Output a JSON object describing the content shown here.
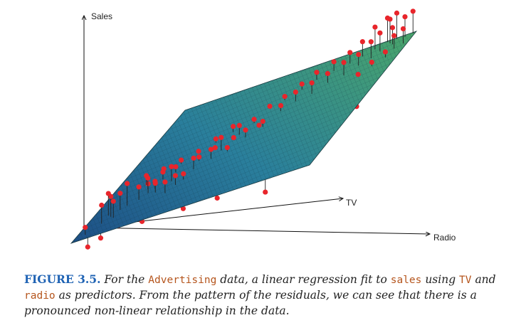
{
  "chart_data": {
    "type": "scatter",
    "subtype": "3d-regression-plane",
    "axes": {
      "vertical": "Sales",
      "depth": "TV",
      "horizontal": "Radio"
    },
    "colors": {
      "plane_low": "#1f5f8c",
      "plane_high": "#3f9a62",
      "points": "#e8252b",
      "residual_lines": "#222222"
    },
    "points": [
      {
        "u": 0.04,
        "v": 0.04,
        "h": 0.04
      },
      {
        "u": 0.06,
        "v": 0.02,
        "h": -0.06
      },
      {
        "u": 0.08,
        "v": 0.1,
        "h": 0.1
      },
      {
        "u": 0.1,
        "v": 0.14,
        "h": 0.11
      },
      {
        "u": 0.12,
        "v": 0.18,
        "h": 0.09
      },
      {
        "u": 0.14,
        "v": 0.2,
        "h": 0.12
      },
      {
        "u": 0.18,
        "v": 0.22,
        "h": 0.07
      },
      {
        "u": 0.2,
        "v": 0.26,
        "h": 0.05
      },
      {
        "u": 0.22,
        "v": 0.28,
        "h": 0.04
      },
      {
        "u": 0.1,
        "v": 0.05,
        "h": -0.05
      },
      {
        "u": 0.16,
        "v": 0.08,
        "h": -0.03
      },
      {
        "u": 0.25,
        "v": 0.1,
        "h": -0.06
      },
      {
        "u": 0.3,
        "v": 0.2,
        "h": 0.06
      },
      {
        "u": 0.32,
        "v": 0.25,
        "h": 0.05
      },
      {
        "u": 0.28,
        "v": 0.3,
        "h": 0.08
      },
      {
        "u": 0.35,
        "v": 0.35,
        "h": 0.06
      },
      {
        "u": 0.4,
        "v": 0.4,
        "h": 0.05
      },
      {
        "u": 0.42,
        "v": 0.45,
        "h": 0.07
      },
      {
        "u": 0.45,
        "v": 0.3,
        "h": -0.02
      },
      {
        "u": 0.5,
        "v": 0.32,
        "h": -0.05
      },
      {
        "u": 0.55,
        "v": 0.3,
        "h": -0.08
      },
      {
        "u": 0.6,
        "v": 0.28,
        "h": -0.1
      },
      {
        "u": 0.7,
        "v": 0.25,
        "h": -0.2
      },
      {
        "u": 0.62,
        "v": 0.4,
        "h": -0.04
      },
      {
        "u": 0.66,
        "v": 0.45,
        "h": -0.06
      },
      {
        "u": 0.75,
        "v": 0.42,
        "h": -0.12
      },
      {
        "u": 0.8,
        "v": 0.45,
        "h": -0.15
      },
      {
        "u": 0.85,
        "v": 0.5,
        "h": -0.1
      },
      {
        "u": 0.9,
        "v": 0.52,
        "h": -0.08
      },
      {
        "u": 0.95,
        "v": 0.55,
        "h": -0.06
      },
      {
        "u": 0.5,
        "v": 0.5,
        "h": 0.04
      },
      {
        "u": 0.55,
        "v": 0.55,
        "h": 0.03
      },
      {
        "u": 0.45,
        "v": 0.55,
        "h": 0.05
      },
      {
        "u": 0.4,
        "v": 0.6,
        "h": 0.03
      },
      {
        "u": 0.48,
        "v": 0.62,
        "h": 0.02
      },
      {
        "u": 0.58,
        "v": 0.65,
        "h": 0.03
      },
      {
        "u": 0.62,
        "v": 0.7,
        "h": 0.05
      },
      {
        "u": 0.68,
        "v": 0.72,
        "h": 0.06
      },
      {
        "u": 0.72,
        "v": 0.78,
        "h": 0.05
      },
      {
        "u": 0.78,
        "v": 0.8,
        "h": 0.07
      },
      {
        "u": 0.82,
        "v": 0.85,
        "h": 0.06
      },
      {
        "u": 0.86,
        "v": 0.88,
        "h": 0.09
      },
      {
        "u": 0.88,
        "v": 0.92,
        "h": 0.1
      },
      {
        "u": 0.92,
        "v": 0.95,
        "h": 0.09
      },
      {
        "u": 0.95,
        "v": 0.9,
        "h": 0.07
      },
      {
        "u": 0.96,
        "v": 0.98,
        "h": 0.11
      },
      {
        "u": 0.9,
        "v": 0.97,
        "h": 0.13
      },
      {
        "u": 0.84,
        "v": 0.96,
        "h": 0.12
      },
      {
        "u": 0.8,
        "v": 0.93,
        "h": 0.08
      },
      {
        "u": 0.76,
        "v": 0.9,
        "h": 0.06
      },
      {
        "u": 0.7,
        "v": 0.88,
        "h": 0.05
      },
      {
        "u": 0.64,
        "v": 0.85,
        "h": 0.04
      },
      {
        "u": 0.6,
        "v": 0.8,
        "h": 0.03
      },
      {
        "u": 0.55,
        "v": 0.75,
        "h": 0.02
      },
      {
        "u": 0.5,
        "v": 0.72,
        "h": 0.01
      },
      {
        "u": 0.35,
        "v": 0.55,
        "h": 0.02
      },
      {
        "u": 0.3,
        "v": 0.5,
        "h": 0.01
      },
      {
        "u": 0.25,
        "v": 0.45,
        "h": 0.02
      },
      {
        "u": 0.2,
        "v": 0.4,
        "h": 0.03
      },
      {
        "u": 0.15,
        "v": 0.35,
        "h": 0.05
      },
      {
        "u": 0.18,
        "v": 0.3,
        "h": 0.06
      },
      {
        "u": 0.22,
        "v": 0.35,
        "h": 0.04
      },
      {
        "u": 0.26,
        "v": 0.38,
        "h": 0.03
      },
      {
        "u": 0.34,
        "v": 0.42,
        "h": 0.02
      },
      {
        "u": 0.38,
        "v": 0.48,
        "h": 0.01
      },
      {
        "u": 0.44,
        "v": 0.52,
        "h": 0.01
      },
      {
        "u": 0.52,
        "v": 0.58,
        "h": 0.0
      },
      {
        "u": 0.56,
        "v": 0.6,
        "h": -0.01
      },
      {
        "u": 0.74,
        "v": 0.62,
        "h": -0.03
      },
      {
        "u": 0.78,
        "v": 0.68,
        "h": -0.02
      },
      {
        "u": 0.82,
        "v": 0.72,
        "h": -0.01
      },
      {
        "u": 0.86,
        "v": 0.76,
        "h": 0.0
      },
      {
        "u": 0.9,
        "v": 0.8,
        "h": 0.02
      },
      {
        "u": 0.94,
        "v": 0.84,
        "h": 0.03
      },
      {
        "u": 0.98,
        "v": 0.92,
        "h": 0.08
      },
      {
        "u": 0.99,
        "v": 0.99,
        "h": 0.12
      },
      {
        "u": 0.92,
        "v": 0.99,
        "h": 0.14
      },
      {
        "u": 0.88,
        "v": 0.99,
        "h": 0.13
      },
      {
        "u": 0.12,
        "v": 0.12,
        "h": 0.09
      },
      {
        "u": 0.08,
        "v": 0.16,
        "h": 0.12
      },
      {
        "u": 0.24,
        "v": 0.24,
        "h": 0.05
      },
      {
        "u": 0.34,
        "v": 0.28,
        "h": 0.03
      },
      {
        "u": 0.46,
        "v": 0.42,
        "h": 0.02
      },
      {
        "u": 0.58,
        "v": 0.48,
        "h": -0.02
      },
      {
        "u": 0.66,
        "v": 0.55,
        "h": -0.03
      },
      {
        "u": 0.72,
        "v": 0.58,
        "h": -0.05
      },
      {
        "u": 0.76,
        "v": 0.5,
        "h": -0.09
      },
      {
        "u": 0.68,
        "v": 0.35,
        "h": -0.14
      },
      {
        "u": 0.52,
        "v": 0.2,
        "h": -0.12
      },
      {
        "u": 0.4,
        "v": 0.15,
        "h": -0.09
      }
    ]
  },
  "caption": {
    "lead": "FIGURE 3.5.",
    "t1": " For the ",
    "c1": "Advertising",
    "t2": " data, a linear regression fit to ",
    "c2": "sales",
    "t3": " using ",
    "c3": "TV",
    "t4": " and ",
    "c4": "radio",
    "t5": " as predictors. From the pattern of the residuals, we can see that there is a pronounced non-linear relationship in the data."
  }
}
